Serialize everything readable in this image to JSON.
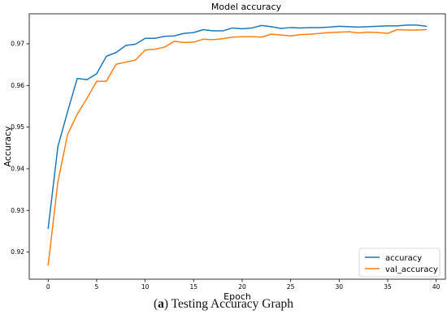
{
  "chart_data": {
    "type": "line",
    "title": "Model accuracy",
    "xlabel": "Epoch",
    "ylabel": "Accuracy",
    "xlim": [
      -1.95,
      40.95
    ],
    "ylim": [
      0.9135,
      0.9772
    ],
    "xticks": [
      0,
      5,
      10,
      15,
      20,
      25,
      30,
      35,
      40
    ],
    "yticks": [
      0.92,
      0.93,
      0.94,
      0.95,
      0.96,
      0.97
    ],
    "ytick_labels": [
      "0.92",
      "0.93",
      "0.94",
      "0.95",
      "0.96",
      "0.97"
    ],
    "grid": false,
    "legend_position": "lower right",
    "x": [
      0,
      1,
      2,
      3,
      4,
      5,
      6,
      7,
      8,
      9,
      10,
      11,
      12,
      13,
      14,
      15,
      16,
      17,
      18,
      19,
      20,
      21,
      22,
      23,
      24,
      25,
      26,
      27,
      28,
      29,
      30,
      31,
      32,
      33,
      34,
      35,
      36,
      37,
      38,
      39
    ],
    "series": [
      {
        "name": "accuracy",
        "color": "#1f77b4",
        "values": [
          0.9257,
          0.9453,
          0.9537,
          0.9617,
          0.9614,
          0.9628,
          0.967,
          0.9679,
          0.9696,
          0.9699,
          0.9713,
          0.9713,
          0.9718,
          0.9719,
          0.9725,
          0.9727,
          0.9734,
          0.9731,
          0.9731,
          0.9738,
          0.9736,
          0.9738,
          0.9744,
          0.9741,
          0.9737,
          0.9739,
          0.9738,
          0.9739,
          0.9739,
          0.974,
          0.9742,
          0.9741,
          0.974,
          0.9741,
          0.9742,
          0.9743,
          0.9743,
          0.9745,
          0.9745,
          0.9742
        ]
      },
      {
        "name": "val_accuracy",
        "color": "#ff7f0e",
        "values": [
          0.9169,
          0.9368,
          0.9482,
          0.9531,
          0.9569,
          0.961,
          0.961,
          0.9651,
          0.9656,
          0.9661,
          0.9685,
          0.9687,
          0.9692,
          0.9706,
          0.9703,
          0.9704,
          0.9711,
          0.971,
          0.9712,
          0.9716,
          0.9717,
          0.9717,
          0.9716,
          0.9723,
          0.9721,
          0.9719,
          0.9722,
          0.9723,
          0.9725,
          0.9727,
          0.9728,
          0.9729,
          0.9726,
          0.9728,
          0.9727,
          0.9725,
          0.9734,
          0.9733,
          0.9733,
          0.9734
        ]
      }
    ]
  },
  "caption": {
    "label": "a",
    "text": "Testing Accuracy Graph"
  }
}
